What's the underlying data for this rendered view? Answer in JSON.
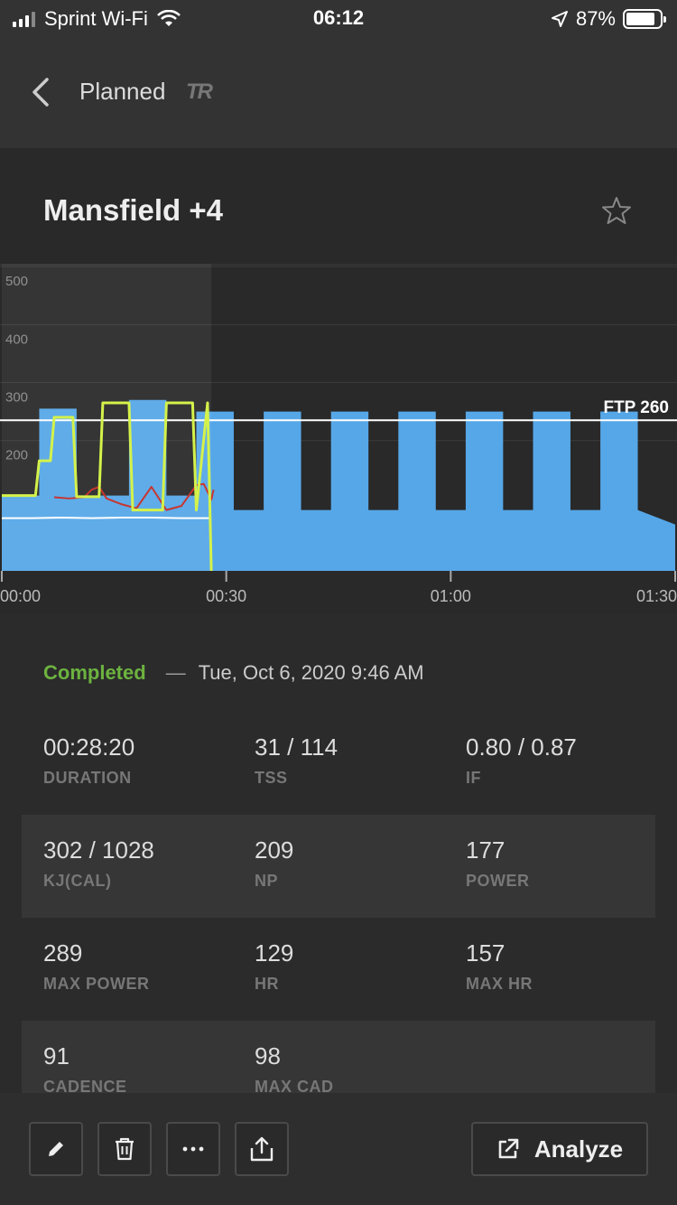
{
  "status_bar": {
    "carrier": "Sprint Wi-Fi",
    "time": "06:12",
    "battery": "87%",
    "battery_level": 0.87,
    "icons": [
      "signal-icon",
      "wifi-icon",
      "location-arrow-icon",
      "battery-icon"
    ]
  },
  "nav": {
    "back_icon": "chevron-left-icon",
    "title": "Planned",
    "logo": "TR"
  },
  "workout": {
    "title": "Mansfield +4",
    "star_icon": "star-outline-icon"
  },
  "chart_data": {
    "type": "area",
    "y_ticks": [
      "500",
      "400",
      "300",
      "200"
    ],
    "ylim": [
      0,
      530
    ],
    "x_ticks": [
      "00:00",
      "00:30",
      "01:00",
      "01:30"
    ],
    "xlim_minutes": [
      0,
      90
    ],
    "ftp_label": "FTP 260",
    "ftp": 260,
    "colors": {
      "target": "#56a7e8",
      "power": "#d4f24a",
      "hr": "#c8352f",
      "cadence": "#ffffff",
      "ftp_line": "#ffffff"
    },
    "target_power": {
      "x": [
        0,
        5,
        5,
        10,
        10,
        17,
        17,
        22,
        22,
        26,
        26,
        31,
        31,
        35,
        35,
        40,
        40,
        44,
        44,
        49,
        49,
        53,
        53,
        58,
        58,
        62,
        62,
        67,
        67,
        71,
        71,
        76,
        76,
        80,
        80,
        85,
        85,
        90
      ],
      "y": [
        130,
        130,
        280,
        280,
        130,
        130,
        295,
        295,
        130,
        130,
        275,
        275,
        105,
        105,
        275,
        275,
        105,
        105,
        275,
        275,
        105,
        105,
        275,
        275,
        105,
        105,
        275,
        275,
        105,
        105,
        275,
        275,
        105,
        105,
        275,
        275,
        105,
        80
      ]
    },
    "power": {
      "x": [
        0,
        4.5,
        5,
        6.5,
        7,
        9.5,
        10,
        13,
        13.5,
        17,
        17.5,
        21.5,
        22,
        25.5,
        26,
        27.5,
        28
      ],
      "y": [
        130,
        130,
        190,
        190,
        265,
        265,
        128,
        128,
        290,
        290,
        105,
        105,
        290,
        290,
        105,
        290,
        0
      ]
    },
    "heart_rate": {
      "x": [
        7,
        9,
        11,
        12,
        13,
        14,
        16,
        18,
        20,
        22,
        24,
        26,
        27,
        28,
        28.3
      ],
      "y": [
        127,
        125,
        127,
        140,
        145,
        125,
        115,
        108,
        145,
        105,
        112,
        148,
        150,
        123,
        140
      ]
    },
    "cadence": {
      "x": [
        0,
        4,
        8,
        12,
        16,
        20,
        24,
        28
      ],
      "y": [
        91,
        91,
        92,
        91,
        92,
        92,
        91,
        91
      ]
    }
  },
  "summary": {
    "status": "Completed",
    "dash": "—",
    "date": "Tue, Oct 6, 2020 9:46 AM"
  },
  "stats": [
    [
      {
        "value": "00:28:20",
        "label": "DURATION"
      },
      {
        "value": "31 / 114",
        "label": "TSS"
      },
      {
        "value": "0.80 / 0.87",
        "label": "IF"
      }
    ],
    [
      {
        "value": "302 / 1028",
        "label": "KJ(CAL)"
      },
      {
        "value": "209",
        "label": "NP"
      },
      {
        "value": "177",
        "label": "POWER"
      }
    ],
    [
      {
        "value": "289",
        "label": "MAX POWER"
      },
      {
        "value": "129",
        "label": "HR"
      },
      {
        "value": "157",
        "label": "MAX HR"
      }
    ],
    [
      {
        "value": "91",
        "label": "CADENCE"
      },
      {
        "value": "98",
        "label": "MAX CAD"
      }
    ]
  ],
  "toolbar": {
    "icons": [
      "pencil-icon",
      "trash-icon",
      "more-dots-icon",
      "share-icon",
      "external-link-icon"
    ],
    "analyze_label": "Analyze"
  }
}
